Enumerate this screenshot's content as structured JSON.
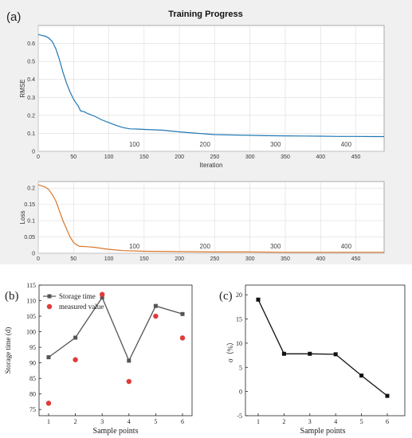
{
  "panel_labels": {
    "a": "(a)",
    "b": "(b)",
    "c": "(c)"
  },
  "title": "Training Progress",
  "chart_data": [
    {
      "id": "rmse",
      "type": "line",
      "title": "Training Progress",
      "xlabel": "Iteration",
      "ylabel": "RMSE",
      "xlim": [
        0,
        490
      ],
      "ylim": [
        0,
        0.7
      ],
      "xticks": [
        0,
        50,
        100,
        150,
        200,
        250,
        300,
        350,
        400,
        450
      ],
      "yticks": [
        0,
        0.1,
        0.2,
        0.3,
        0.4,
        0.5,
        0.6
      ],
      "grid": true,
      "color": "#1f77b4",
      "epoch_labels": [
        {
          "x": 108,
          "text": "100"
        },
        {
          "x": 208,
          "text": "200"
        },
        {
          "x": 308,
          "text": "300"
        },
        {
          "x": 408,
          "text": "400"
        }
      ],
      "series": [
        {
          "x": [
            0,
            5,
            10,
            15,
            20,
            25,
            30,
            35,
            40,
            45,
            50,
            55,
            57,
            58,
            60,
            65,
            70,
            80,
            90,
            100,
            110,
            120,
            130,
            140,
            150,
            175,
            200,
            225,
            250,
            275,
            300,
            325,
            350,
            375,
            400,
            425,
            450,
            475,
            490
          ],
          "y": [
            0.65,
            0.645,
            0.64,
            0.63,
            0.61,
            0.57,
            0.51,
            0.44,
            0.38,
            0.33,
            0.29,
            0.26,
            0.25,
            0.24,
            0.225,
            0.22,
            0.21,
            0.195,
            0.175,
            0.16,
            0.145,
            0.132,
            0.125,
            0.124,
            0.122,
            0.118,
            0.108,
            0.1,
            0.093,
            0.091,
            0.089,
            0.087,
            0.086,
            0.085,
            0.084,
            0.083,
            0.083,
            0.082,
            0.082
          ]
        }
      ]
    },
    {
      "id": "loss",
      "type": "line",
      "xlabel": "",
      "ylabel": "Loss",
      "xlim": [
        0,
        490
      ],
      "ylim": [
        0,
        0.22
      ],
      "xticks": [
        0,
        50,
        100,
        150,
        200,
        250,
        300,
        350,
        400,
        450
      ],
      "yticks": [
        0,
        0.05,
        0.1,
        0.15,
        0.2
      ],
      "grid": true,
      "color": "#d9772b",
      "epoch_labels": [
        {
          "x": 108,
          "text": "100"
        },
        {
          "x": 208,
          "text": "200"
        },
        {
          "x": 308,
          "text": "300"
        },
        {
          "x": 408,
          "text": "400"
        }
      ],
      "series": [
        {
          "x": [
            0,
            5,
            10,
            15,
            20,
            25,
            30,
            35,
            40,
            45,
            50,
            55,
            58,
            60,
            70,
            80,
            90,
            100,
            120,
            150,
            200,
            250,
            300,
            350,
            400,
            450,
            490
          ],
          "y": [
            0.21,
            0.207,
            0.203,
            0.195,
            0.18,
            0.16,
            0.13,
            0.1,
            0.075,
            0.05,
            0.033,
            0.025,
            0.022,
            0.021,
            0.02,
            0.018,
            0.015,
            0.012,
            0.008,
            0.006,
            0.005,
            0.004,
            0.004,
            0.003,
            0.003,
            0.003,
            0.003
          ]
        }
      ]
    },
    {
      "id": "storage",
      "type": "line",
      "xlabel": "Sample points",
      "ylabel": "Storage time (d)",
      "categories": [
        "1",
        "2",
        "3",
        "4",
        "5",
        "6"
      ],
      "ylim": [
        73,
        115
      ],
      "yticks": [
        75,
        80,
        85,
        90,
        95,
        100,
        105,
        110,
        115
      ],
      "legend_position": "top-left",
      "series": [
        {
          "name": "Storage time",
          "kind": "line",
          "color": "#555555",
          "values": [
            91.8,
            98.1,
            111.0,
            90.7,
            108.3,
            105.7
          ]
        },
        {
          "name": "measured value",
          "kind": "scatter",
          "color": "#e03a3a",
          "values": [
            77,
            91,
            112,
            84,
            105,
            98
          ]
        }
      ]
    },
    {
      "id": "sigma",
      "type": "line",
      "xlabel": "Sample points",
      "ylabel": "σ（%）",
      "categories": [
        "1",
        "2",
        "3",
        "4",
        "5",
        "6"
      ],
      "ylim": [
        -5,
        22
      ],
      "yticks": [
        -5,
        0,
        5,
        10,
        15,
        20
      ],
      "series": [
        {
          "color": "#111111",
          "values": [
            19.0,
            7.8,
            7.8,
            7.7,
            3.3,
            -0.9
          ]
        }
      ]
    }
  ]
}
